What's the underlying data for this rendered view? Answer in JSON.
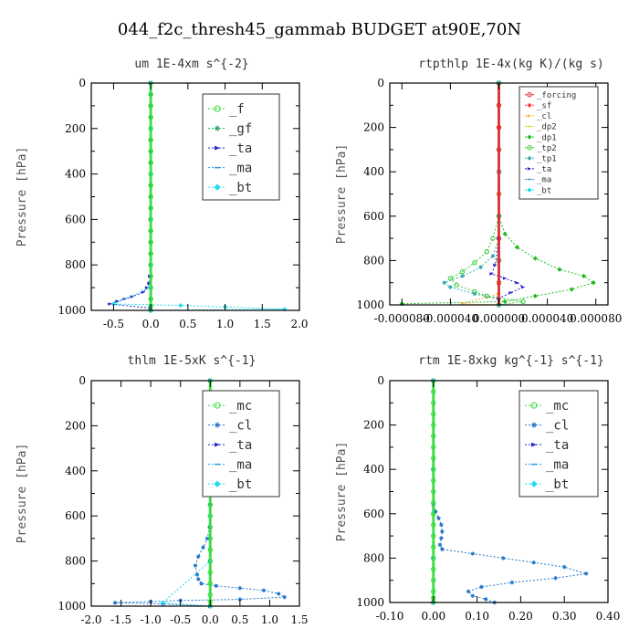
{
  "figure": {
    "suptitle": "044_f2c_thresh45_gammab  BUDGET at90E,70N"
  },
  "chart_data": [
    {
      "type": "line",
      "title": "um  1E-4xm s^{-2}",
      "ylabel": "Pressure [hPa]",
      "xlim": [
        -0.8,
        2.0
      ],
      "ylim": [
        1000,
        0
      ],
      "xticks": [
        -0.5,
        0.0,
        0.5,
        1.0,
        1.5,
        2.0
      ],
      "xtick_labels": [
        "-0.5",
        "0.0",
        "0.5",
        "1.0",
        "1.5",
        "2.0"
      ],
      "yticks": [
        0,
        200,
        400,
        600,
        800,
        1000
      ],
      "ytick_labels": [
        "0",
        "200",
        "400",
        "600",
        "800",
        "1000"
      ],
      "legend_position": "top-right",
      "series": [
        {
          "name": "_f",
          "color": "#33dd33",
          "marker": "circle",
          "x": [
            0,
            0,
            0,
            0,
            0,
            0,
            0,
            0,
            0,
            0,
            0,
            0,
            0,
            0,
            0,
            0,
            0,
            0,
            0,
            0,
            0,
            0
          ],
          "y": [
            0,
            50,
            100,
            150,
            200,
            250,
            300,
            350,
            400,
            450,
            500,
            550,
            600,
            650,
            700,
            750,
            800,
            850,
            900,
            950,
            980,
            1000
          ]
        },
        {
          "name": "_gf",
          "color": "#22aa66",
          "marker": "star",
          "x": [
            0,
            0,
            0,
            0,
            0,
            0,
            0,
            0,
            0,
            0,
            0,
            0,
            0,
            0,
            0,
            0,
            0,
            0,
            0,
            0,
            0,
            0
          ],
          "y": [
            0,
            50,
            100,
            150,
            200,
            250,
            300,
            350,
            400,
            450,
            500,
            550,
            600,
            650,
            700,
            750,
            800,
            850,
            900,
            950,
            980,
            1000
          ]
        },
        {
          "name": "_ta",
          "color": "#2222cc",
          "marker": "triangle",
          "x": [
            0,
            0,
            0,
            -0.01,
            -0.02,
            -0.05,
            -0.1,
            -0.25,
            -0.35,
            -0.45,
            -0.55,
            0
          ],
          "y": [
            0,
            600,
            800,
            850,
            880,
            900,
            920,
            940,
            950,
            960,
            972,
            990
          ]
        },
        {
          "name": "_ma",
          "color": "#3399dd",
          "marker": "dash",
          "x": [
            0,
            0,
            0,
            0,
            0,
            0,
            0
          ],
          "y": [
            0,
            200,
            400,
            600,
            800,
            900,
            1000
          ]
        },
        {
          "name": "_bt",
          "color": "#22ddee",
          "marker": "diamond",
          "x": [
            0,
            0,
            0,
            0,
            0,
            0,
            -0.5,
            0.4,
            1.0,
            1.8,
            0
          ],
          "y": [
            0,
            200,
            400,
            600,
            800,
            900,
            972,
            978,
            985,
            995,
            1000
          ]
        }
      ]
    },
    {
      "type": "line",
      "title": "rtpthlp  1E-4x(kg K)/(kg s)",
      "ylabel": "Pressure [hPa]",
      "xlim": [
        -9e-05,
        9e-05
      ],
      "ylim": [
        1000,
        0
      ],
      "xticks": [
        -8e-05,
        -4e-05,
        0.0,
        4e-05,
        8e-05
      ],
      "xtick_labels": [
        "-0.000080",
        "-0.000040",
        "0.000000",
        "0.000040",
        "0.000080"
      ],
      "yticks": [
        0,
        200,
        400,
        600,
        800,
        1000
      ],
      "ytick_labels": [
        "0",
        "200",
        "400",
        "600",
        "800",
        "1000"
      ],
      "legend_position": "top-right",
      "series": [
        {
          "name": "_forcing",
          "color": "#dd2222",
          "marker": "circle",
          "x": [
            0,
            0,
            0,
            0,
            0,
            0,
            0,
            0,
            0,
            0,
            0
          ],
          "y": [
            0,
            100,
            200,
            300,
            400,
            500,
            600,
            700,
            800,
            900,
            1000
          ]
        },
        {
          "name": "_sf",
          "color": "#ff3333",
          "marker": "star",
          "x": [
            0,
            0,
            0,
            0,
            0,
            0,
            0
          ],
          "y": [
            0,
            200,
            400,
            600,
            800,
            900,
            1000
          ]
        },
        {
          "name": "_cl",
          "color": "#ffaa33",
          "marker": "triangle",
          "x": [
            0,
            0,
            0,
            0,
            -3e-05,
            0
          ],
          "y": [
            0,
            400,
            800,
            950,
            995,
            1000
          ]
        },
        {
          "name": "_dp2",
          "color": "#dddd22",
          "marker": "dash",
          "x": [
            0,
            0,
            0,
            0
          ],
          "y": [
            0,
            500,
            900,
            1000
          ]
        },
        {
          "name": "_dp1",
          "color": "#22bb22",
          "marker": "diamond",
          "x": [
            0,
            0,
            5e-06,
            1.5e-05,
            3e-05,
            5e-05,
            7e-05,
            7.8e-05,
            6e-05,
            3e-05,
            5e-06,
            -8e-05
          ],
          "y": [
            0,
            600,
            680,
            740,
            790,
            840,
            870,
            900,
            930,
            960,
            985,
            995
          ]
        },
        {
          "name": "_tp2",
          "color": "#33cc33",
          "marker": "circle",
          "x": [
            0,
            0,
            -5e-06,
            -1e-05,
            -2e-05,
            -3e-05,
            -4e-05,
            -3.5e-05,
            -2e-05,
            -1e-05,
            2e-05,
            0
          ],
          "y": [
            0,
            600,
            700,
            760,
            810,
            850,
            880,
            910,
            940,
            960,
            985,
            1000
          ]
        },
        {
          "name": "_tp1",
          "color": "#33aaaa",
          "marker": "star",
          "x": [
            0,
            0,
            0,
            -5e-06,
            -1.5e-05,
            -3e-05,
            -4.5e-05,
            -4e-05,
            -2e-05,
            0
          ],
          "y": [
            0,
            600,
            700,
            780,
            830,
            870,
            900,
            920,
            950,
            975
          ]
        },
        {
          "name": "_ta",
          "color": "#2222cc",
          "marker": "triangle",
          "x": [
            0,
            0,
            -3e-06,
            -6e-06,
            5e-06,
            1.5e-05,
            2e-05,
            1e-05,
            0
          ],
          "y": [
            0,
            700,
            820,
            860,
            880,
            900,
            920,
            945,
            970
          ]
        },
        {
          "name": "_ma",
          "color": "#3399dd",
          "marker": "dash",
          "x": [
            0,
            0,
            0,
            0
          ],
          "y": [
            0,
            400,
            800,
            1000
          ]
        },
        {
          "name": "_bt",
          "color": "#22ddee",
          "marker": "diamond",
          "x": [
            0,
            0,
            0,
            0
          ],
          "y": [
            0,
            400,
            800,
            1000
          ]
        }
      ]
    },
    {
      "type": "line",
      "title": "thlm  1E-5xK s^{-1}",
      "ylabel": "Pressure [hPa]",
      "xlim": [
        -2.0,
        1.5
      ],
      "ylim": [
        1000,
        0
      ],
      "xticks": [
        -2.0,
        -1.5,
        -1.0,
        -0.5,
        0.0,
        0.5,
        1.0,
        1.5
      ],
      "xtick_labels": [
        "-2.0",
        "-1.5",
        "-1.0",
        "-0.5",
        "0.0",
        "0.5",
        "1.0",
        "1.5"
      ],
      "yticks": [
        0,
        200,
        400,
        600,
        800,
        1000
      ],
      "ytick_labels": [
        "0",
        "200",
        "400",
        "600",
        "800",
        "1000"
      ],
      "legend_position": "top-right",
      "series": [
        {
          "name": "_mc",
          "color": "#33dd33",
          "marker": "circle",
          "x": [
            0,
            0,
            0,
            0,
            0,
            0,
            0,
            0,
            0,
            0,
            0,
            0,
            0,
            0,
            0,
            0,
            0,
            0,
            0,
            0,
            0,
            0
          ],
          "y": [
            0,
            50,
            100,
            150,
            200,
            250,
            300,
            350,
            400,
            450,
            500,
            550,
            600,
            650,
            700,
            750,
            800,
            850,
            900,
            950,
            980,
            1000
          ]
        },
        {
          "name": "_cl",
          "color": "#2277cc",
          "marker": "star",
          "x": [
            0,
            0,
            -0.01,
            -0.05,
            -0.12,
            -0.2,
            -0.25,
            -0.22,
            -0.2,
            -0.15,
            0.1,
            0.5,
            0.9,
            1.15,
            1.25,
            0.5,
            -0.5,
            -1.0,
            -1.6,
            -0.8,
            0
          ],
          "y": [
            0,
            550,
            650,
            700,
            740,
            780,
            820,
            860,
            880,
            900,
            910,
            920,
            930,
            945,
            960,
            970,
            975,
            980,
            985,
            990,
            1000
          ]
        },
        {
          "name": "_ta",
          "color": "#2222cc",
          "marker": "triangle",
          "x": [
            0,
            0,
            0,
            0
          ],
          "y": [
            0,
            400,
            800,
            1000
          ]
        },
        {
          "name": "_ma",
          "color": "#3399dd",
          "marker": "dash",
          "x": [
            0,
            0,
            0,
            0
          ],
          "y": [
            0,
            400,
            800,
            1000
          ]
        },
        {
          "name": "_bt",
          "color": "#22ddee",
          "marker": "diamond",
          "x": [
            0,
            0,
            0,
            0,
            0,
            -0.8,
            0
          ],
          "y": [
            0,
            200,
            400,
            600,
            800,
            985,
            1000
          ]
        }
      ]
    },
    {
      "type": "line",
      "title": "rtm  1E-8xkg kg^{-1} s^{-1}",
      "ylabel": "Pressure [hPa]",
      "xlim": [
        -0.1,
        0.4
      ],
      "ylim": [
        1000,
        0
      ],
      "xticks": [
        -0.1,
        0.0,
        0.1,
        0.2,
        0.3,
        0.4
      ],
      "xtick_labels": [
        "-0.10",
        "0.00",
        "0.10",
        "0.20",
        "0.30",
        "0.40"
      ],
      "yticks": [
        0,
        200,
        400,
        600,
        800,
        1000
      ],
      "ytick_labels": [
        "0",
        "200",
        "400",
        "600",
        "800",
        "1000"
      ],
      "legend_position": "top-right",
      "series": [
        {
          "name": "_mc",
          "color": "#33dd33",
          "marker": "circle",
          "x": [
            0,
            0,
            0,
            0,
            0,
            0,
            0,
            0,
            0,
            0,
            0,
            0,
            0,
            0,
            0,
            0,
            0,
            0,
            0,
            0,
            0,
            0
          ],
          "y": [
            0,
            50,
            100,
            150,
            200,
            250,
            300,
            350,
            400,
            450,
            500,
            550,
            600,
            650,
            700,
            750,
            800,
            850,
            900,
            950,
            980,
            1000
          ]
        },
        {
          "name": "_cl",
          "color": "#2277cc",
          "marker": "star",
          "x": [
            0,
            0,
            0.005,
            0.012,
            0.018,
            0.02,
            0.018,
            0.015,
            0.02,
            0.09,
            0.16,
            0.23,
            0.3,
            0.35,
            0.28,
            0.18,
            0.11,
            0.08,
            0.09,
            0.12,
            0.14
          ],
          "y": [
            0,
            560,
            590,
            620,
            650,
            680,
            710,
            740,
            760,
            780,
            800,
            820,
            840,
            870,
            890,
            910,
            930,
            950,
            970,
            985,
            1000
          ]
        },
        {
          "name": "_ta",
          "color": "#2222cc",
          "marker": "triangle",
          "x": [
            0,
            0,
            0,
            0
          ],
          "y": [
            0,
            400,
            800,
            1000
          ]
        },
        {
          "name": "_ma",
          "color": "#3399dd",
          "marker": "dash",
          "x": [
            0,
            0,
            0,
            0
          ],
          "y": [
            0,
            400,
            800,
            1000
          ]
        },
        {
          "name": "_bt",
          "color": "#22ddee",
          "marker": "diamond",
          "x": [
            0,
            0,
            0,
            0
          ],
          "y": [
            0,
            400,
            800,
            1000
          ]
        }
      ]
    }
  ]
}
